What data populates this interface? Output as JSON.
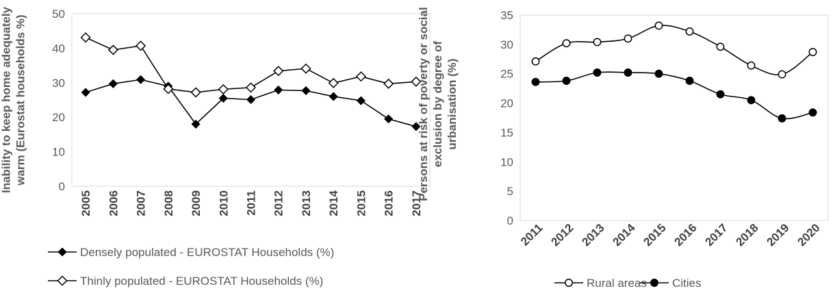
{
  "chart_data": [
    {
      "type": "line",
      "title": "",
      "xlabel": "",
      "ylabel": "Inability to keep home adequately warm (Eurostat households %)",
      "ylabel_lines": [
        "Inability to keep home adequately",
        "warm (Eurostat households %)"
      ],
      "categories": [
        "2005",
        "2006",
        "2007",
        "2008",
        "2009",
        "2010",
        "2011",
        "2012",
        "2013",
        "2014",
        "2015",
        "2016",
        "2017"
      ],
      "yticks": [
        "0",
        "10",
        "20",
        "30",
        "40",
        "50"
      ],
      "ylim": [
        0,
        50
      ],
      "grid": false,
      "legend_position": "bottom",
      "series": [
        {
          "name": "Densely populated - EUROSTAT Households (%)",
          "marker": "diamond-filled",
          "color": "#000000",
          "values": [
            27.2,
            29.7,
            30.9,
            29.0,
            18.0,
            25.5,
            25.1,
            27.9,
            27.7,
            26.0,
            24.8,
            19.5,
            17.3
          ]
        },
        {
          "name": "Thinly populated - EUROSTAT Households (%)",
          "marker": "diamond-open",
          "color": "#000000",
          "values": [
            43.1,
            39.5,
            40.7,
            28.2,
            27.2,
            28.1,
            28.6,
            33.4,
            34.1,
            29.9,
            31.8,
            29.7,
            30.3
          ]
        }
      ]
    },
    {
      "type": "line",
      "title": "",
      "xlabel": "",
      "ylabel": "Persons at risk of poverty or social exclusion by degree of urbanisation (%)",
      "ylabel_lines": [
        "Persons at risk of poverty or social",
        "exclusion by degree of",
        "urbanisation (%)"
      ],
      "categories": [
        "2011",
        "2012",
        "2013",
        "2014",
        "2015",
        "2016",
        "2017",
        "2018",
        "2019",
        "2020"
      ],
      "yticks": [
        "0",
        "5",
        "10",
        "15",
        "20",
        "25",
        "30",
        "35"
      ],
      "ylim": [
        0,
        35
      ],
      "grid": false,
      "smooth": true,
      "legend_position": "bottom",
      "series": [
        {
          "name": "Rural areas",
          "marker": "circle-open",
          "color": "#000000",
          "values": [
            27.1,
            30.2,
            30.4,
            31.0,
            33.2,
            32.2,
            29.6,
            26.4,
            24.9,
            28.7
          ]
        },
        {
          "name": "Cities",
          "marker": "circle-filled",
          "color": "#000000",
          "values": [
            23.6,
            23.8,
            25.2,
            25.2,
            25.0,
            23.8,
            21.5,
            20.5,
            17.4,
            18.4
          ]
        }
      ]
    }
  ]
}
